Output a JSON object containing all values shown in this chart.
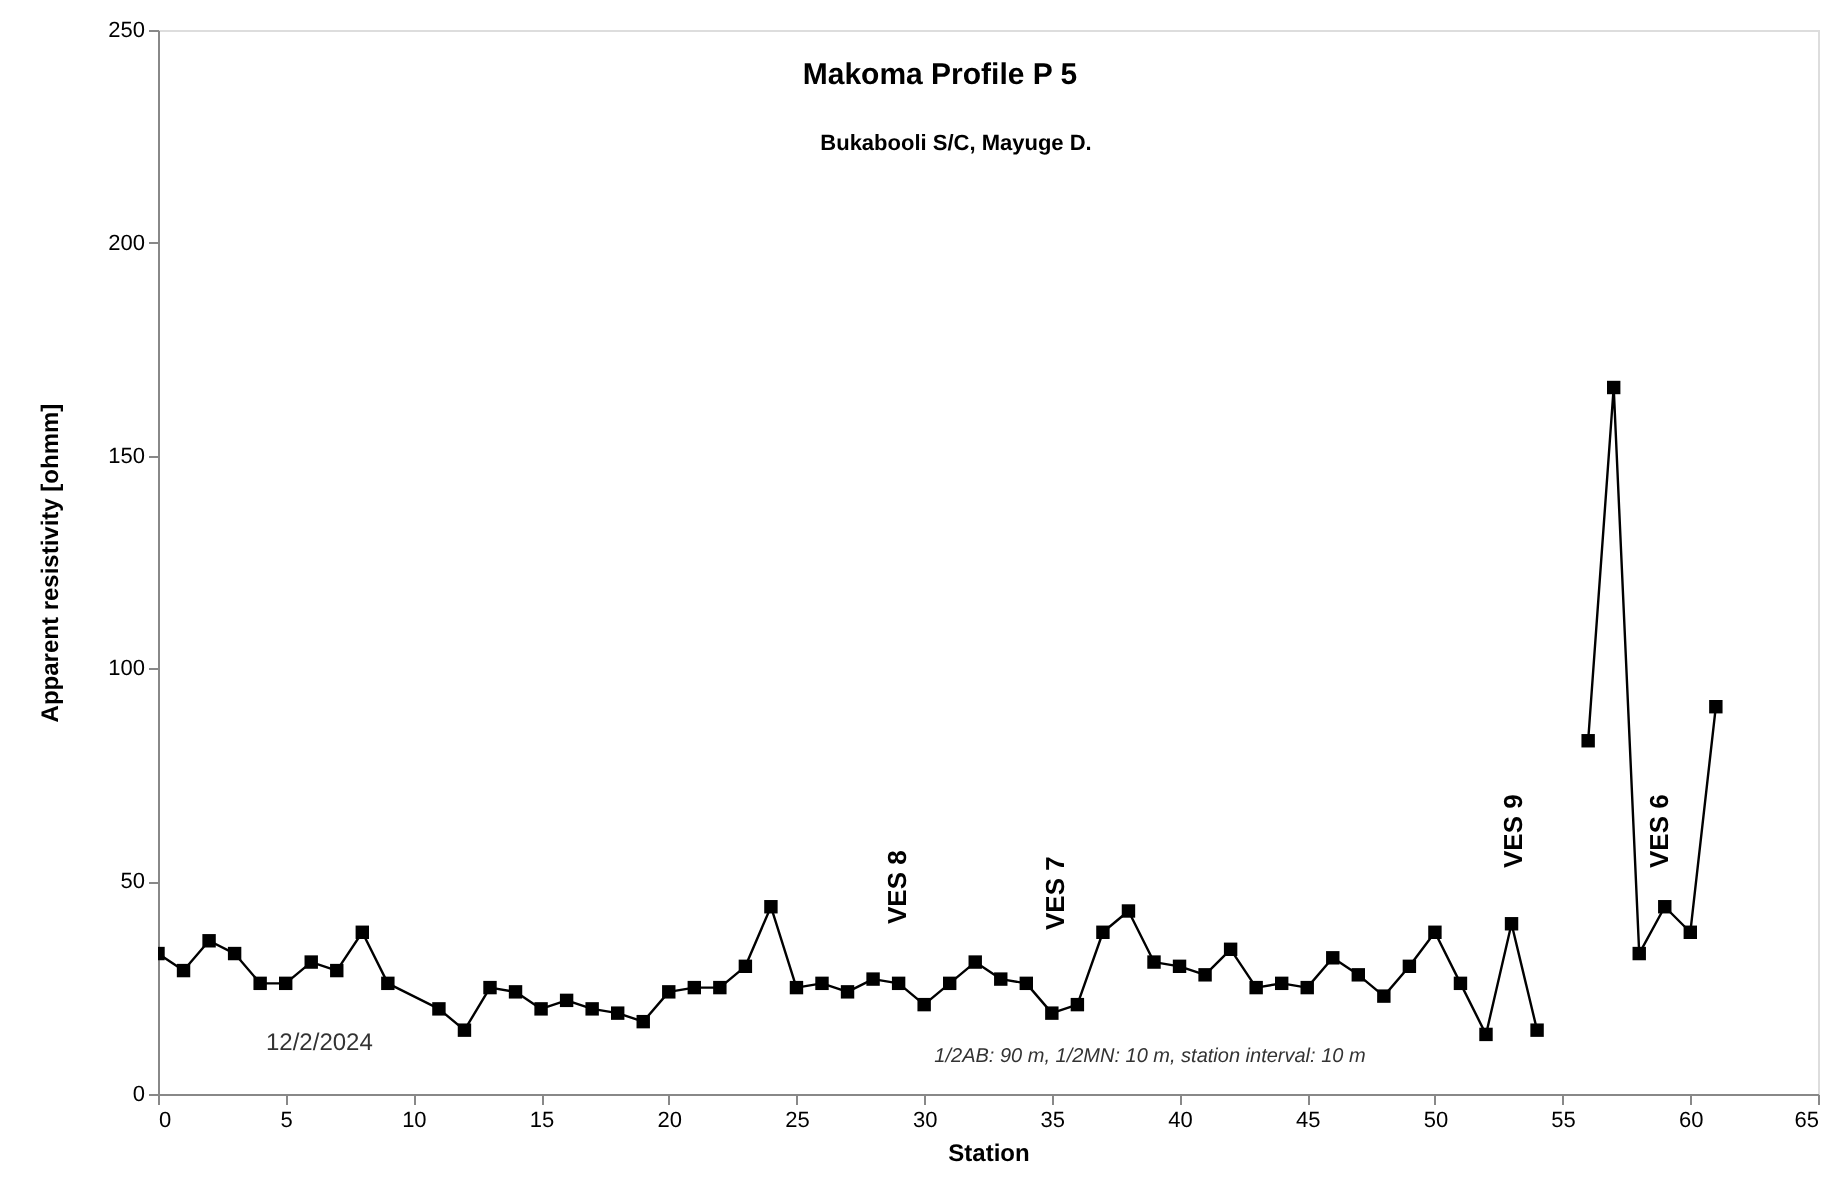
{
  "chart_data": {
    "type": "line",
    "title": "Makoma Profile P 5",
    "subtitle": "Bukabooli S/C, Mayuge D.",
    "xlabel": "Station",
    "ylabel": "Apparent resistivity [ohmm]",
    "x": [
      0,
      1,
      2,
      3,
      4,
      5,
      6,
      7,
      8,
      9,
      11,
      12,
      13,
      14,
      15,
      16,
      17,
      18,
      19,
      20,
      21,
      22,
      23,
      24,
      25,
      26,
      27,
      28,
      29,
      30,
      31,
      32,
      33,
      34,
      35,
      36,
      37,
      38,
      39,
      40,
      41,
      42,
      43,
      44,
      45,
      46,
      47,
      48,
      49,
      50,
      51,
      52,
      53,
      54,
      55,
      56,
      57,
      58,
      59,
      60,
      61
    ],
    "series": [
      {
        "color": "#000000",
        "values": [
          33,
          29,
          36,
          33,
          26,
          26,
          31,
          29,
          38,
          26,
          20,
          15,
          25,
          24,
          20,
          22,
          20,
          19,
          17,
          24,
          25,
          25,
          30,
          44,
          25,
          26,
          24,
          27,
          26,
          21,
          26,
          31,
          27,
          26,
          19,
          21,
          38,
          43,
          31,
          30,
          28,
          34,
          25,
          26,
          25,
          32,
          28,
          23,
          30,
          38,
          26,
          14,
          40,
          15,
          null,
          83,
          166,
          33,
          44,
          38,
          91
        ]
      }
    ],
    "xlim": [
      0,
      65
    ],
    "xticks": [
      0,
      5,
      10,
      15,
      20,
      25,
      30,
      35,
      40,
      45,
      50,
      55,
      60,
      65
    ],
    "ylim": [
      0,
      250
    ],
    "yticks": [
      0,
      50,
      100,
      150,
      200,
      250
    ],
    "marker": "square",
    "line_style": "solid",
    "grid": false,
    "annotations": [
      "VES 8",
      "VES 7",
      "VES 9",
      "VES 6",
      "12/2/2024",
      "1/2AB: 90 m, 1/2MN: 10 m, station interval: 10 m"
    ]
  }
}
